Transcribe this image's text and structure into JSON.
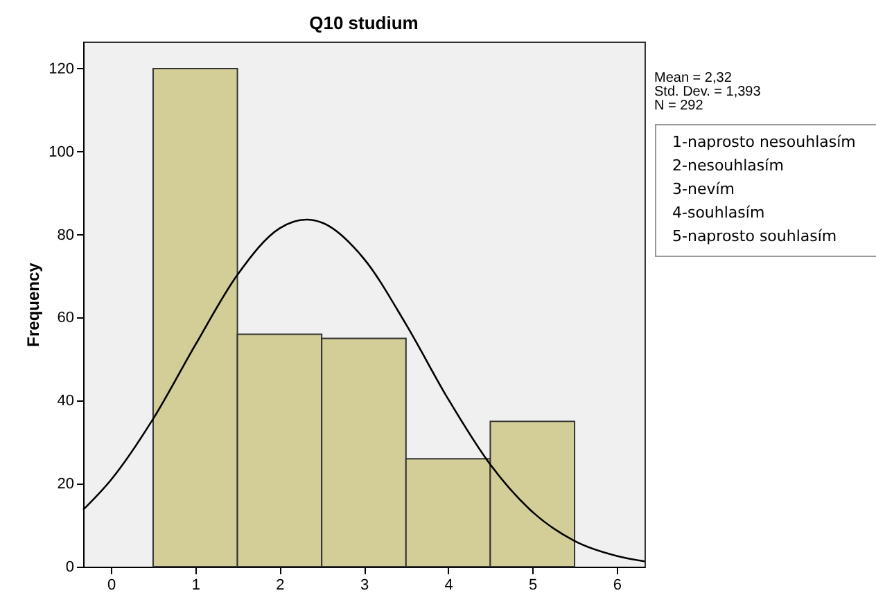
{
  "chart_data": {
    "type": "histogram",
    "title": "Q10 studium",
    "ylabel": "Frequency",
    "bins": [
      0.5,
      1.5,
      2.5,
      3.5,
      4.5,
      5.5
    ],
    "values": [
      120,
      56,
      55,
      26,
      35
    ],
    "color": "#d3ce97",
    "series": [
      {
        "type": "line",
        "color": "#000000",
        "x": [
          -0.33,
          0,
          0.5,
          1,
          1.5,
          2,
          2.32,
          2.5,
          3,
          3.5,
          4,
          4.5,
          5,
          5.5,
          6,
          6.33
        ],
        "values": [
          13.7,
          20.9,
          35.6,
          53.4,
          70.3,
          81.5,
          83.6,
          82.9,
          74.2,
          58.4,
          40.4,
          24.6,
          13.2,
          6.2,
          2.6,
          1.3
        ]
      }
    ],
    "xlim": [
      -0.33,
      6.33
    ],
    "xticks": [
      0,
      1,
      2,
      3,
      4,
      5,
      6
    ],
    "ylim": [
      0,
      126.5
    ],
    "yticks": [
      0,
      20,
      40,
      60,
      80,
      100,
      120
    ],
    "grid": false,
    "annotations": [
      "Mean = 2,32",
      "Std. Dev. = 1,393",
      "N = 292",
      "1-naprosto nesouhlasím",
      "2-nesouhlasím",
      "3-nevím",
      "4-souhlasím",
      "5-naprosto souhlasím"
    ]
  }
}
